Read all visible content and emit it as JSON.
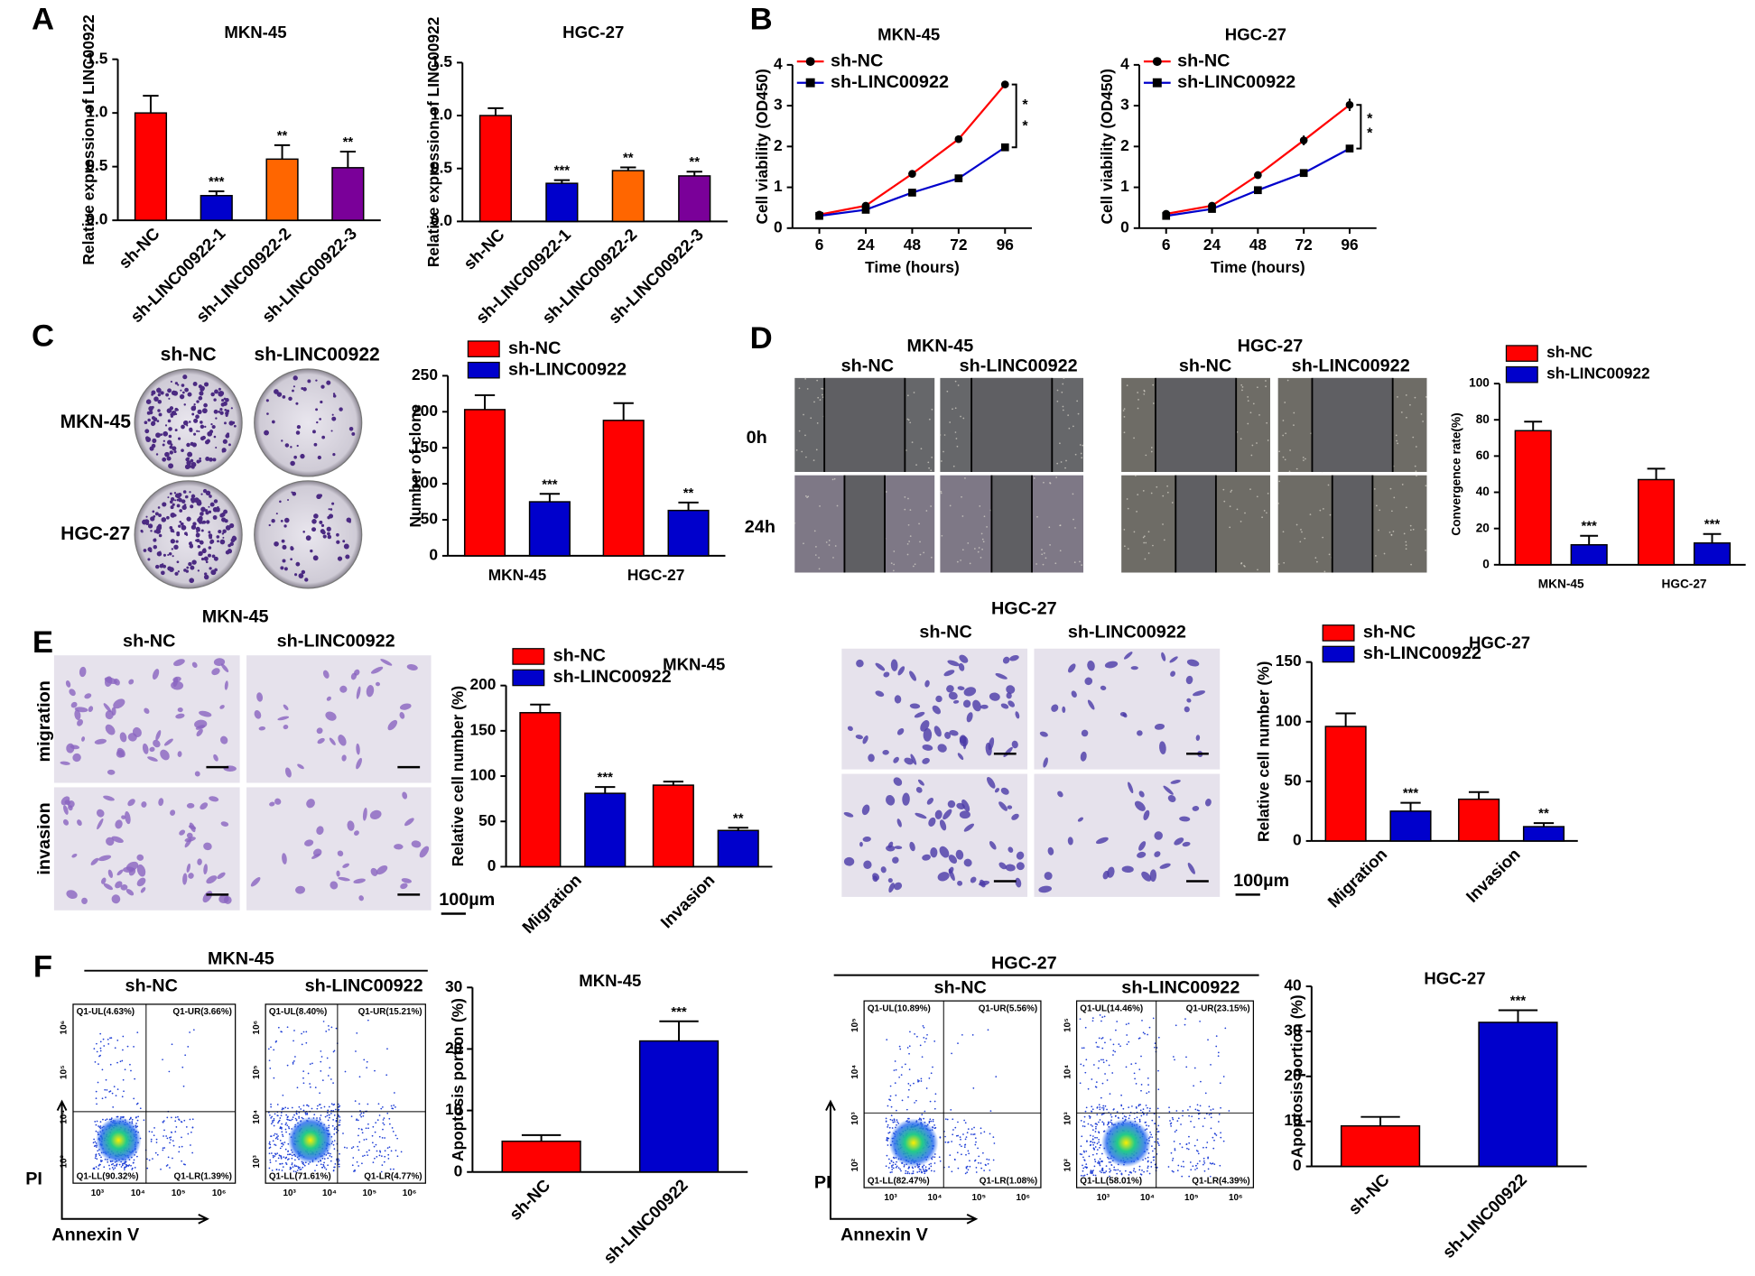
{
  "chart_data": [
    {
      "type": "bar",
      "title": "MKN-45",
      "ylabel": "Relative expression of LINC00922",
      "categories": [
        "sh-NC",
        "sh-LINC00922-1",
        "sh-LINC00922-2",
        "sh-LINC00922-3"
      ],
      "values": [
        1.0,
        0.23,
        0.57,
        0.49
      ],
      "errors": [
        0.16,
        0.04,
        0.13,
        0.15
      ],
      "colors": [
        "#ff0000",
        "#0000cc",
        "#ff6600",
        "#7a0099"
      ],
      "annotations": [
        null,
        "***",
        "**",
        "**"
      ],
      "ylim": [
        0,
        1.5
      ],
      "yticks": [
        {
          "value": 0,
          "label": "0.0"
        },
        0.5,
        {
          "value": 1,
          "label": "1.0"
        },
        1.5
      ]
    },
    {
      "type": "bar",
      "title": "HGC-27",
      "ylabel": "Relative expression of LINC00922",
      "categories": [
        "sh-NC",
        "sh-LINC00922-1",
        "sh-LINC00922-2",
        "sh-LINC00922-3"
      ],
      "values": [
        1.0,
        0.36,
        0.48,
        0.43
      ],
      "errors": [
        0.07,
        0.03,
        0.03,
        0.04
      ],
      "colors": [
        "#ff0000",
        "#0000cc",
        "#ff6600",
        "#7a0099"
      ],
      "annotations": [
        null,
        "***",
        "**",
        "**"
      ],
      "ylim": [
        0,
        1.5
      ],
      "yticks": [
        {
          "value": 0,
          "label": "0.0"
        },
        0.5,
        {
          "value": 1,
          "label": "1.0"
        },
        1.5
      ]
    },
    {
      "type": "line",
      "title": "MKN-45",
      "ylabel": "Cell  viability (OD450)",
      "xlabel": "Time (hours)",
      "categories": [
        "6",
        "24",
        "48",
        "72",
        "96"
      ],
      "series": [
        {
          "name": "sh-NC",
          "color": "#ff0000",
          "values": [
            0.33,
            0.55,
            1.33,
            2.18,
            3.52
          ]
        },
        {
          "name": "sh-LINC00922",
          "color": "#0000cc",
          "values": [
            0.3,
            0.45,
            0.87,
            1.22,
            1.98
          ]
        }
      ],
      "significance": [
        "*",
        "*"
      ],
      "ylim": [
        0,
        4
      ],
      "yticks": [
        0,
        1,
        2,
        3,
        4
      ]
    },
    {
      "type": "line",
      "title": "HGC-27",
      "ylabel": "Cell  viability (OD450)",
      "xlabel": "Time (hours)",
      "categories": [
        "6",
        "24",
        "48",
        "72",
        "96"
      ],
      "series": [
        {
          "name": "sh-NC",
          "color": "#ff0000",
          "values": [
            0.35,
            0.55,
            1.3,
            2.15,
            3.02
          ],
          "errors": [
            0.04,
            0.05,
            0.05,
            0.12,
            0.15
          ]
        },
        {
          "name": "sh-LINC00922",
          "color": "#0000cc",
          "values": [
            0.3,
            0.47,
            0.93,
            1.35,
            1.95
          ]
        }
      ],
      "significance": [
        "*",
        "*"
      ],
      "ylim": [
        0,
        4
      ],
      "yticks": [
        0,
        1,
        2,
        3,
        4
      ]
    },
    {
      "type": "bar",
      "ylabel": "Number of clone",
      "categories": [
        "MKN-45",
        "HGC-27"
      ],
      "series": [
        {
          "name": "sh-NC",
          "color": "#ff0000",
          "values": [
            203,
            188
          ],
          "errors": [
            20,
            24
          ]
        },
        {
          "name": "sh-LINC00922",
          "color": "#0000cc",
          "values": [
            75,
            63
          ],
          "errors": [
            11,
            11
          ],
          "annotations": [
            "***",
            "**"
          ]
        }
      ],
      "ylim": [
        0,
        250
      ],
      "yticks": [
        0,
        50,
        100,
        150,
        200,
        250
      ]
    },
    {
      "type": "bar",
      "ylabel": "Convergence rate(%)",
      "categories": [
        "MKN-45",
        "HGC-27"
      ],
      "series": [
        {
          "name": "sh-NC",
          "color": "#ff0000",
          "values": [
            74,
            47
          ],
          "errors": [
            5,
            6
          ]
        },
        {
          "name": "sh-LINC00922",
          "color": "#0000cc",
          "values": [
            11,
            12
          ],
          "errors": [
            5,
            5
          ],
          "annotations": [
            "***",
            "***"
          ]
        }
      ],
      "ylim": [
        0,
        100
      ],
      "yticks": [
        0,
        20,
        40,
        60,
        80,
        100
      ]
    },
    {
      "type": "bar",
      "title": "MKN-45",
      "ylabel": "Relative cell number (%)",
      "categories": [
        "Migration",
        "Invasion"
      ],
      "series": [
        {
          "name": "sh-NC",
          "color": "#ff0000",
          "values": [
            170,
            90
          ],
          "errors": [
            9,
            4
          ]
        },
        {
          "name": "sh-LINC00922",
          "color": "#0000cc",
          "values": [
            81,
            40
          ],
          "errors": [
            7,
            3
          ],
          "annotations": [
            "***",
            "**"
          ]
        }
      ],
      "ylim": [
        0,
        200
      ],
      "yticks": [
        0,
        50,
        100,
        150,
        200
      ]
    },
    {
      "type": "bar",
      "title": "HGC-27",
      "ylabel": "Relative cell number (%)",
      "categories": [
        "Migration",
        "Invasion"
      ],
      "series": [
        {
          "name": "sh-NC",
          "color": "#ff0000",
          "values": [
            96,
            35
          ],
          "errors": [
            11,
            6
          ]
        },
        {
          "name": "sh-LINC00922",
          "color": "#0000cc",
          "values": [
            25,
            12
          ],
          "errors": [
            7,
            3
          ],
          "annotations": [
            "***",
            "**"
          ]
        }
      ],
      "ylim": [
        0,
        150
      ],
      "yticks": [
        0,
        50,
        100,
        150
      ]
    },
    {
      "type": "bar",
      "title": "MKN-45",
      "ylabel": "Apoptosis portion (%)",
      "categories": [
        "sh-NC",
        "sh-LINC00922"
      ],
      "values": [
        5,
        21.3
      ],
      "errors": [
        1,
        3.2
      ],
      "colors": [
        "#ff0000",
        "#0000cc"
      ],
      "annotations": [
        null,
        "***"
      ],
      "ylim": [
        0,
        30
      ],
      "yticks": [
        0,
        10,
        20,
        30
      ]
    },
    {
      "type": "bar",
      "title": "HGC-27",
      "ylabel": "Apoptosis portion (%)",
      "categories": [
        "sh-NC",
        "sh-LINC00922"
      ],
      "values": [
        9,
        32
      ],
      "errors": [
        2,
        2.7
      ],
      "colors": [
        "#ff0000",
        "#0000cc"
      ],
      "annotations": [
        null,
        "***"
      ],
      "ylim": [
        0,
        40
      ],
      "yticks": [
        0,
        10,
        20,
        30,
        40
      ]
    }
  ],
  "figure": {
    "panels": [
      "A",
      "B",
      "C",
      "D",
      "E",
      "F"
    ],
    "colony": {
      "columns": [
        "sh-NC",
        "sh-LINC00922"
      ],
      "rows": [
        "MKN-45",
        "HGC-27"
      ]
    },
    "wound": {
      "groups": [
        {
          "title": "MKN-45",
          "columns": [
            "sh-NC",
            "sh-LINC00922"
          ]
        },
        {
          "title": "HGC-27",
          "columns": [
            "sh-NC",
            "sh-LINC00922"
          ]
        }
      ],
      "rows": [
        "0h",
        "24h"
      ]
    },
    "transwell": [
      {
        "title": "MKN-45",
        "columns": [
          "sh-NC",
          "sh-LINC00922"
        ],
        "rows": [
          "migration",
          "invasion"
        ],
        "scale": "100µm"
      },
      {
        "title": "HGC-27",
        "columns": [
          "sh-NC",
          "sh-LINC00922"
        ],
        "rows": [
          "migration",
          "invasion"
        ],
        "scale": "100µm"
      }
    ],
    "flow": [
      {
        "title": "MKN-45",
        "columns": [
          "sh-NC",
          "sh-LINC00922"
        ],
        "xlabel": "Annexin V",
        "ylabel": "PI",
        "xticks": [
          "10³",
          "10⁴",
          "10⁵",
          "10⁶"
        ],
        "yticks": [
          "10³",
          "10⁴",
          "10⁵",
          "10⁶"
        ],
        "quadrants": [
          [
            "Q1-UL(4.63%)",
            "Q1-UR(3.66%)",
            "Q1-LL(90.32%)",
            "Q1-LR(1.39%)"
          ],
          [
            "Q1-UL(8.40%)",
            "Q1-UR(15.21%)",
            "Q1-LL(71.61%)",
            "Q1-LR(4.77%)"
          ]
        ]
      },
      {
        "title": "HGC-27",
        "columns": [
          "sh-NC",
          "sh-LINC00922"
        ],
        "xlabel": "Annexin V",
        "ylabel": "PI",
        "xticks": [
          "10³",
          "10⁴",
          "10⁵",
          "10⁶"
        ],
        "yticks": [
          "10²",
          "10³",
          "10⁴",
          "10⁵"
        ],
        "quadrants": [
          [
            "Q1-UL(10.89%)",
            "Q1-UR(5.56%)",
            "Q1-LL(82.47%)",
            "Q1-LR(1.08%)"
          ],
          [
            "Q1-UL(14.46%)",
            "Q1-UR(23.15%)",
            "Q1-LL(58.01%)",
            "Q1-LR(4.39%)"
          ]
        ]
      }
    ]
  }
}
